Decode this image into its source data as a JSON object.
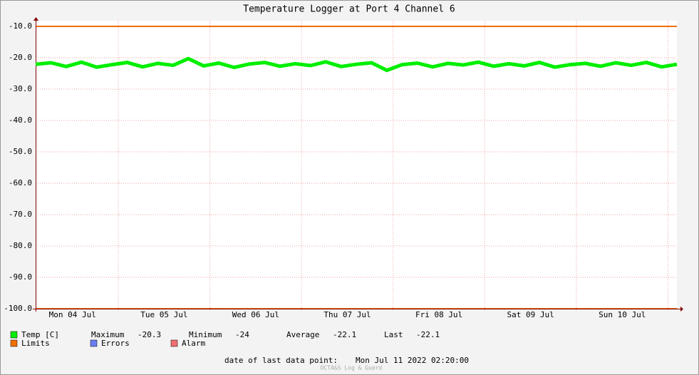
{
  "chart_data": {
    "type": "line",
    "title": "Temperature Logger at Port 4 Channel 6",
    "xlim": [
      "2022-07-04T02:20",
      "2022-07-11T02:20"
    ],
    "xticks": [
      {
        "value": "2022-07-04T12:00",
        "label": "Mon 04 Jul"
      },
      {
        "value": "2022-07-05T12:00",
        "label": "Tue 05 Jul"
      },
      {
        "value": "2022-07-06T12:00",
        "label": "Wed 06 Jul"
      },
      {
        "value": "2022-07-07T12:00",
        "label": "Thu 07 Jul"
      },
      {
        "value": "2022-07-08T12:00",
        "label": "Fri 08 Jul"
      },
      {
        "value": "2022-07-09T12:00",
        "label": "Sat 09 Jul"
      },
      {
        "value": "2022-07-10T12:00",
        "label": "Sun 10 Jul"
      }
    ],
    "xgrid": [
      "2022-07-05T00:00",
      "2022-07-06T00:00",
      "2022-07-07T00:00",
      "2022-07-08T00:00",
      "2022-07-09T00:00",
      "2022-07-10T00:00",
      "2022-07-11T00:00"
    ],
    "ylim": [
      -100,
      -10
    ],
    "yticks": [
      {
        "value": -10,
        "label": "-10.0"
      },
      {
        "value": -20,
        "label": "-20.0"
      },
      {
        "value": -30,
        "label": "-30.0"
      },
      {
        "value": -40,
        "label": "-40.0"
      },
      {
        "value": -50,
        "label": "-50.0"
      },
      {
        "value": -60,
        "label": "-60.0"
      },
      {
        "value": -70,
        "label": "-70.0"
      },
      {
        "value": -80,
        "label": "-80.0"
      },
      {
        "value": -90,
        "label": "-90.0"
      },
      {
        "value": -100,
        "label": "-100.0"
      }
    ],
    "grid": true,
    "x": [
      "2022-07-04T02:20",
      "2022-07-04T06:20",
      "2022-07-04T10:20",
      "2022-07-04T14:20",
      "2022-07-04T18:20",
      "2022-07-04T22:20",
      "2022-07-05T02:20",
      "2022-07-05T06:20",
      "2022-07-05T10:20",
      "2022-07-05T14:20",
      "2022-07-05T18:20",
      "2022-07-05T22:20",
      "2022-07-06T02:20",
      "2022-07-06T06:20",
      "2022-07-06T10:20",
      "2022-07-06T14:20",
      "2022-07-06T18:20",
      "2022-07-06T22:20",
      "2022-07-07T02:20",
      "2022-07-07T06:20",
      "2022-07-07T10:20",
      "2022-07-07T14:20",
      "2022-07-07T18:20",
      "2022-07-07T22:20",
      "2022-07-08T02:20",
      "2022-07-08T06:20",
      "2022-07-08T10:20",
      "2022-07-08T14:20",
      "2022-07-08T18:20",
      "2022-07-08T22:20",
      "2022-07-09T02:20",
      "2022-07-09T06:20",
      "2022-07-09T10:20",
      "2022-07-09T14:20",
      "2022-07-09T18:20",
      "2022-07-09T22:20",
      "2022-07-10T02:20",
      "2022-07-10T06:20",
      "2022-07-10T10:20",
      "2022-07-10T14:20",
      "2022-07-10T18:20",
      "2022-07-10T22:20",
      "2022-07-11T02:20"
    ],
    "series": [
      {
        "name": "Temp [C]",
        "color": "#00ee00",
        "values": [
          -22.1,
          -21.6,
          -22.8,
          -21.4,
          -23.0,
          -22.2,
          -21.5,
          -22.9,
          -21.8,
          -22.4,
          -20.3,
          -22.6,
          -21.7,
          -23.1,
          -22.0,
          -21.5,
          -22.7,
          -21.9,
          -22.5,
          -21.3,
          -22.8,
          -22.1,
          -21.6,
          -24.0,
          -22.2,
          -21.7,
          -22.9,
          -21.8,
          -22.3,
          -21.4,
          -22.7,
          -21.9,
          -22.6,
          -21.5,
          -23.0,
          -22.2,
          -21.8,
          -22.7,
          -21.6,
          -22.4,
          -21.5,
          -22.9,
          -22.1
        ]
      }
    ],
    "limits": {
      "name": "Limits",
      "color": "#f07000",
      "values": [
        -10,
        -100
      ]
    },
    "legend_extra": [
      {
        "name": "Errors",
        "color": "#6a7ff0"
      },
      {
        "name": "Alarm",
        "color": "#f07070"
      }
    ],
    "stats": [
      {
        "label": "Maximum",
        "value": -20.3
      },
      {
        "label": "Minimum",
        "value": -24.0
      },
      {
        "label": "Average",
        "value": -22.1
      },
      {
        "label": "Last",
        "value": -22.1
      }
    ],
    "last_point_label": "date of last data point:",
    "last_point": "Mon Jul 11 2022 02:20:00",
    "footer": "OCTA&S Log & Guard"
  }
}
